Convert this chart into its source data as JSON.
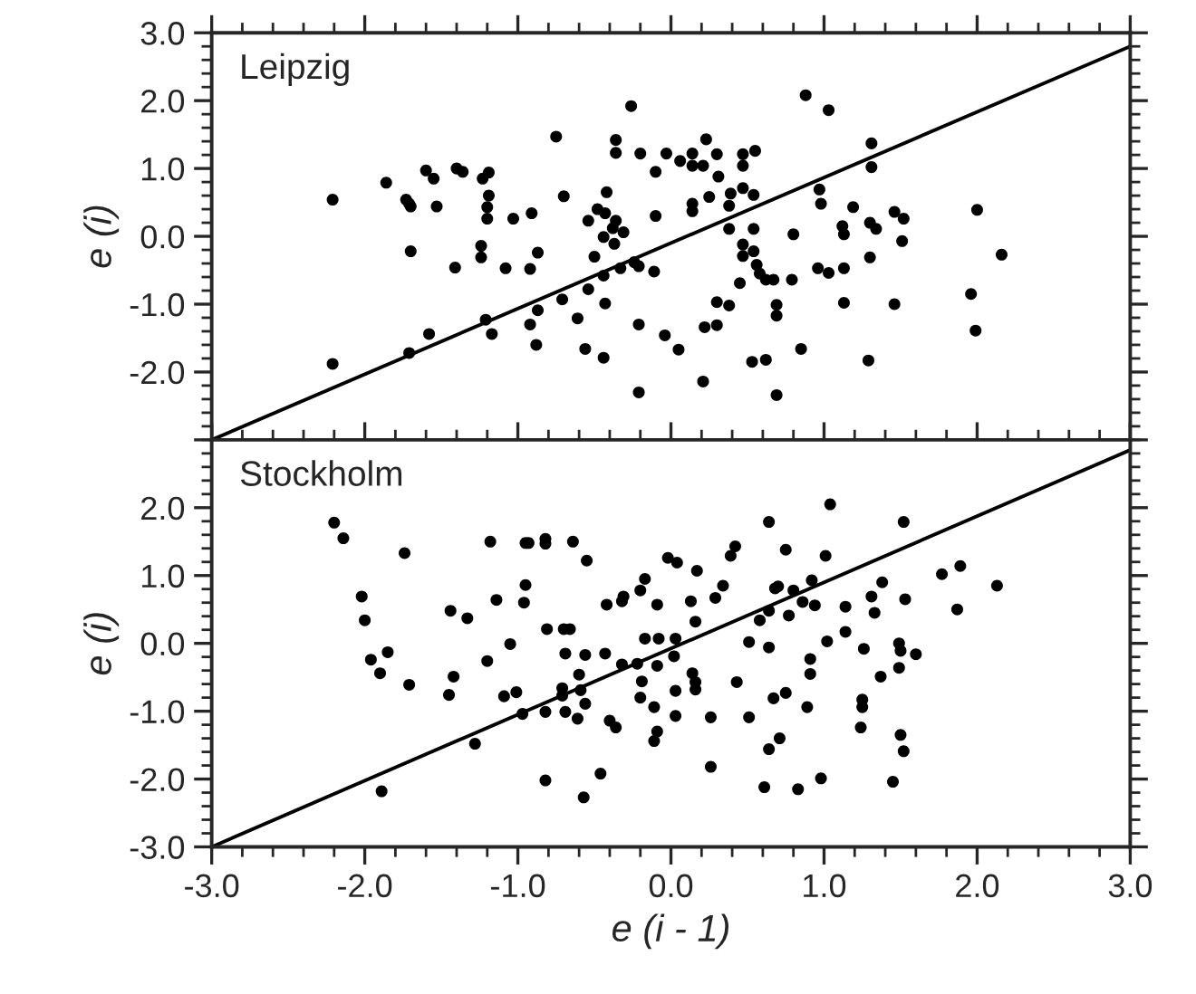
{
  "chart_data": [
    {
      "type": "scatter",
      "ylabel": "e (i)",
      "annotations": [
        "Leipzig"
      ],
      "tick_labels": "y",
      "xlim": [
        -3,
        3
      ],
      "ylim": [
        -3,
        3
      ],
      "xticks": [
        {
          "value": -3,
          "label": null
        },
        {
          "value": -2,
          "label": null
        },
        {
          "value": -1,
          "label": null
        },
        {
          "value": 0,
          "label": null
        },
        {
          "value": 1,
          "label": null
        },
        {
          "value": 2,
          "label": null
        },
        {
          "value": 3,
          "label": null
        }
      ],
      "yticks": [
        {
          "value": -3,
          "label": null
        },
        {
          "value": -2,
          "label": "-2.0"
        },
        {
          "value": -1,
          "label": "-1.0"
        },
        {
          "value": 0,
          "label": "0.0"
        },
        {
          "value": 1,
          "label": "1.0"
        },
        {
          "value": 2,
          "label": "2.0"
        },
        {
          "value": 3,
          "label": "3.0"
        }
      ],
      "series": [
        {
          "marker": "circle",
          "color": "#000000",
          "x": [
            -2.21,
            -2.21,
            -1.86,
            -1.73,
            -1.71,
            -1.7,
            -1.6,
            -1.55,
            -1.53,
            -1.7,
            -1.4,
            -1.36,
            -1.41,
            -1.23,
            -1.19,
            -1.19,
            -1.2,
            -1.2,
            -1.24,
            -1.24,
            -1.08,
            -1.03,
            -0.91,
            -0.87,
            -0.92,
            -1.58,
            -1.71,
            -1.21,
            -1.17,
            -0.92,
            -0.87,
            -0.88,
            -0.75,
            -0.7,
            -0.71,
            -0.61,
            -0.56,
            -0.44,
            -0.43,
            -0.54,
            -0.5,
            -0.44,
            -0.33,
            -0.36,
            -0.36,
            -0.42,
            -0.48,
            -0.54,
            -0.43,
            -0.36,
            -0.38,
            -0.44,
            -0.37,
            -0.26,
            -0.2,
            -0.1,
            -0.03,
            0.06,
            0.14,
            0.14,
            0.21,
            0.23,
            0.3,
            0.31,
            0.47,
            0.47,
            0.55,
            0.88,
            1.03,
            1.31,
            1.31,
            0.25,
            0.39,
            0.38,
            0.47,
            0.54,
            0.14,
            0.14,
            -0.1,
            -0.31,
            -0.24,
            -0.21,
            -0.11,
            0.38,
            0.54,
            0.47,
            0.47,
            0.54,
            0.56,
            0.58,
            0.62,
            0.67,
            0.45,
            0.8,
            0.79,
            0.97,
            0.98,
            1.19,
            1.12,
            1.13,
            1.3,
            1.34,
            1.46,
            1.52,
            1.51,
            1.3,
            0.96,
            1.03,
            1.13,
            1.13,
            1.46,
            0.69,
            0.69,
            0.3,
            0.38,
            0.3,
            0.22,
            -0.21,
            -0.04,
            0.05,
            0.53,
            0.62,
            0.85,
            1.29,
            -0.21,
            0.21,
            0.69,
            2.0,
            2.16,
            1.96,
            1.99
          ],
          "values": [
            0.54,
            -1.88,
            0.79,
            0.54,
            0.48,
            0.44,
            0.97,
            0.85,
            0.44,
            -0.22,
            1.0,
            0.95,
            -0.46,
            0.85,
            0.94,
            0.6,
            0.43,
            0.26,
            -0.14,
            -0.31,
            -0.47,
            0.26,
            0.34,
            -0.24,
            -0.48,
            -1.44,
            -1.72,
            -1.23,
            -1.44,
            -1.3,
            -1.09,
            -1.6,
            1.47,
            0.59,
            -0.93,
            -1.21,
            -1.66,
            -1.79,
            -0.99,
            -0.78,
            -0.3,
            -0.58,
            -0.47,
            1.42,
            1.23,
            0.65,
            0.4,
            0.23,
            0.34,
            0.23,
            0.12,
            -0.01,
            -0.11,
            1.92,
            1.22,
            0.95,
            1.22,
            1.11,
            1.22,
            1.04,
            1.04,
            1.43,
            1.21,
            0.88,
            1.21,
            1.04,
            1.26,
            2.08,
            1.86,
            1.37,
            1.02,
            0.58,
            0.63,
            0.45,
            0.71,
            0.61,
            0.48,
            0.37,
            0.3,
            0.06,
            -0.38,
            -0.44,
            -0.52,
            0.11,
            0.11,
            -0.12,
            -0.29,
            -0.22,
            -0.42,
            -0.55,
            -0.64,
            -0.64,
            -0.69,
            0.03,
            -0.64,
            0.69,
            0.48,
            0.43,
            0.15,
            0.03,
            0.2,
            0.11,
            0.36,
            0.26,
            -0.07,
            -0.31,
            -0.47,
            -0.54,
            -0.47,
            -0.98,
            -1.0,
            -1.01,
            -1.17,
            -0.97,
            -1.02,
            -1.31,
            -1.34,
            -1.3,
            -1.46,
            -1.67,
            -1.85,
            -1.82,
            -1.66,
            -1.83,
            -2.3,
            -2.14,
            -2.34,
            0.39,
            -0.27,
            -0.85,
            -1.39
          ]
        },
        {
          "type": "line",
          "color": "#000000",
          "x": [
            -3,
            3
          ],
          "values": [
            -3,
            2.8
          ]
        }
      ]
    },
    {
      "type": "scatter",
      "xlabel": "e (i - 1)",
      "ylabel": "e (i)",
      "annotations": [
        "Stockholm"
      ],
      "xlim": [
        -3,
        3
      ],
      "ylim": [
        -3,
        3
      ],
      "xticks": [
        {
          "value": -3,
          "label": "-3.0"
        },
        {
          "value": -2,
          "label": "-2.0"
        },
        {
          "value": -1,
          "label": "-1.0"
        },
        {
          "value": 0,
          "label": "0.0"
        },
        {
          "value": 1,
          "label": "1.0"
        },
        {
          "value": 2,
          "label": "2.0"
        },
        {
          "value": 3,
          "label": "3.0"
        }
      ],
      "yticks": [
        {
          "value": -3,
          "label": "-3.0"
        },
        {
          "value": -2,
          "label": "-2.0"
        },
        {
          "value": -1,
          "label": "-1.0"
        },
        {
          "value": 0,
          "label": "0.0"
        },
        {
          "value": 1,
          "label": "1.0"
        },
        {
          "value": 2,
          "label": "2.0"
        }
      ],
      "series": [
        {
          "marker": "circle",
          "color": "#000000",
          "x": [
            -2.2,
            -2.14,
            -1.74,
            -2.02,
            -2.0,
            -1.96,
            -1.9,
            -1.85,
            -1.71,
            -1.89,
            -1.44,
            -1.33,
            -1.42,
            -1.45,
            -1.28,
            -1.18,
            -1.14,
            -1.2,
            -1.09,
            -1.01,
            -1.05,
            -0.95,
            -0.93,
            -0.82,
            -0.82,
            -0.64,
            -0.55,
            -0.95,
            -0.96,
            -0.81,
            -0.7,
            -0.66,
            -0.69,
            -0.56,
            -0.43,
            -0.42,
            -0.32,
            -0.31,
            -0.2,
            -0.17,
            -0.17,
            -0.32,
            -0.19,
            -0.2,
            -0.6,
            -0.59,
            -0.71,
            -0.71,
            -0.69,
            -0.61,
            -0.56,
            -0.82,
            -0.97,
            -0.4,
            -0.36,
            -0.82,
            -0.57,
            -0.46,
            -0.22,
            -0.09,
            -0.08,
            -0.09,
            -0.11,
            -0.09,
            -0.11,
            -0.02,
            0.04,
            0.17,
            0.13,
            0.16,
            0.03,
            0.02,
            0.03,
            0.03,
            0.14,
            0.16,
            0.16,
            0.26,
            0.26,
            0.29,
            0.34,
            0.39,
            0.42,
            0.43,
            0.51,
            0.51,
            0.58,
            0.64,
            0.64,
            0.64,
            0.68,
            0.7,
            0.75,
            0.77,
            0.8,
            0.86,
            0.92,
            0.94,
            1.01,
            1.04,
            1.02,
            0.91,
            0.91,
            0.89,
            0.75,
            0.67,
            0.71,
            0.64,
            0.61,
            0.83,
            0.98,
            1.14,
            1.14,
            1.26,
            1.31,
            1.33,
            1.38,
            1.37,
            1.25,
            1.25,
            1.24,
            1.49,
            1.5,
            1.49,
            1.6,
            1.53,
            1.52,
            1.5,
            1.52,
            1.45,
            1.77,
            1.89,
            1.87,
            2.13
          ],
          "values": [
            1.78,
            1.55,
            1.33,
            0.69,
            0.34,
            -0.24,
            -0.44,
            -0.13,
            -0.61,
            -2.18,
            0.48,
            0.37,
            -0.49,
            -0.76,
            -1.48,
            1.5,
            0.64,
            -0.26,
            -0.78,
            -0.72,
            -0.01,
            1.48,
            1.48,
            1.54,
            1.47,
            1.5,
            1.22,
            0.86,
            0.6,
            0.21,
            0.21,
            0.21,
            -0.15,
            -0.17,
            -0.15,
            0.57,
            0.62,
            0.69,
            0.78,
            0.95,
            0.07,
            -0.31,
            -0.56,
            -0.8,
            -0.46,
            -0.69,
            -0.66,
            -0.77,
            -1.01,
            -1.11,
            -0.89,
            -1.01,
            -1.04,
            -1.14,
            -1.24,
            -2.02,
            -2.27,
            -1.92,
            -0.3,
            0.57,
            0.07,
            -0.33,
            -0.94,
            -1.3,
            -1.44,
            1.26,
            1.19,
            1.07,
            0.62,
            0.32,
            0.07,
            -0.19,
            -0.7,
            -1.07,
            -0.44,
            -0.57,
            -0.68,
            -1.09,
            -1.82,
            0.67,
            0.85,
            1.29,
            1.43,
            -0.57,
            -1.09,
            0.02,
            0.34,
            0.48,
            1.79,
            -0.06,
            0.81,
            0.84,
            1.38,
            0.41,
            0.78,
            0.61,
            0.93,
            0.56,
            1.29,
            2.05,
            0.03,
            -0.23,
            -0.45,
            -0.94,
            -0.73,
            -0.81,
            -1.4,
            -1.56,
            -2.12,
            -2.15,
            -1.99,
            0.54,
            0.17,
            -0.08,
            0.69,
            0.45,
            0.9,
            -0.49,
            -0.83,
            -0.94,
            -1.24,
            0.0,
            -0.11,
            -0.36,
            -0.16,
            0.65,
            1.79,
            -1.35,
            -1.59,
            -2.04,
            1.02,
            1.14,
            0.5,
            0.85
          ]
        },
        {
          "type": "line",
          "color": "#000000",
          "x": [
            -3,
            3
          ],
          "values": [
            -3,
            2.85
          ]
        }
      ]
    }
  ]
}
